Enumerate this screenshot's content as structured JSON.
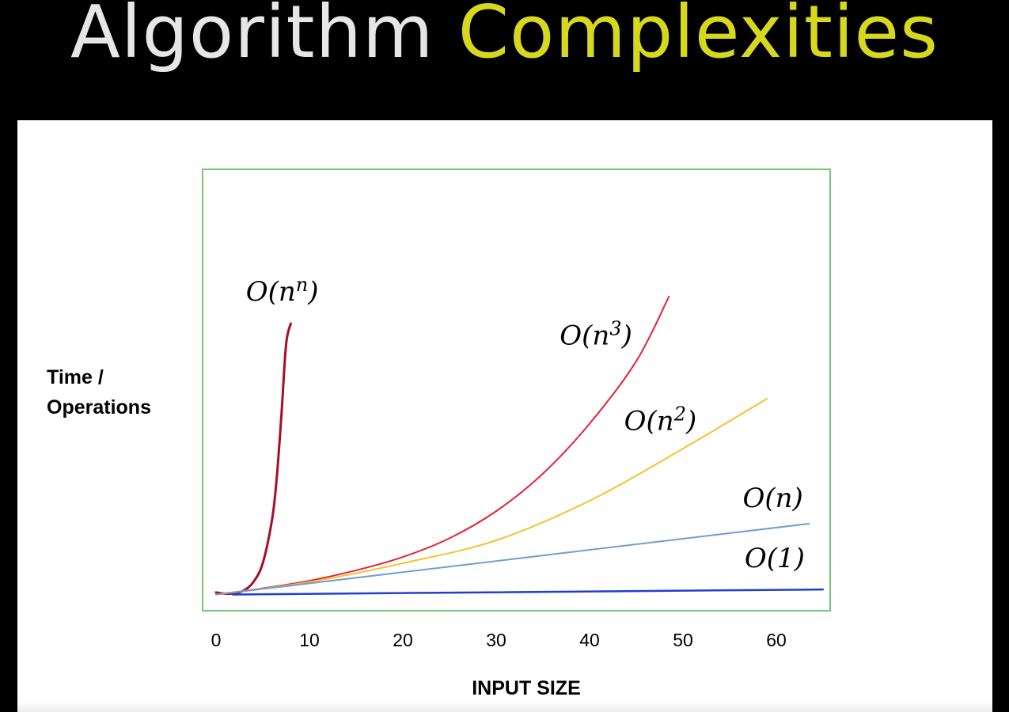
{
  "slide": {
    "title_part1": "Algorithm",
    "title_part2": "Complexities",
    "title_color_1": "#e6e6e6",
    "title_color_2": "#d7d81e",
    "background": "#000000"
  },
  "chart_data": {
    "type": "line",
    "title": "",
    "xlabel": "INPUT SIZE",
    "ylabel": "Time / Operations",
    "ylabel_lines": [
      "Time /",
      "Operations"
    ],
    "xlim": [
      0,
      65
    ],
    "ylim": [
      0,
      100
    ],
    "xticks": [
      0,
      10,
      20,
      30,
      40,
      50,
      60
    ],
    "yticks_shown": false,
    "grid": false,
    "frame_color": "#7cc576",
    "legend": "inline labels",
    "series": [
      {
        "name": "O(n^n)",
        "label_base": "O(n",
        "label_sup": "n",
        "label_close": ")",
        "color": "#a90d26",
        "label_at": [
          3.2,
          72.5
        ],
        "x": [
          0,
          1,
          2,
          3,
          4,
          5,
          6,
          6.5,
          7,
          7.5,
          8
        ],
        "y": [
          2.5,
          2.2,
          2.3,
          3.0,
          5.0,
          9.5,
          20,
          30,
          45,
          62,
          67
        ]
      },
      {
        "name": "O(n^3)",
        "label_base": "O(n",
        "label_sup": "3",
        "label_close": ")",
        "color": "#e2243a",
        "label_at": [
          36.8,
          62
        ],
        "x": [
          0,
          5,
          10,
          15,
          20,
          25,
          30,
          35,
          40,
          45,
          48.5
        ],
        "y": [
          2,
          3.5,
          5.3,
          7.8,
          11,
          15.5,
          22,
          31,
          43,
          58,
          73.5
        ]
      },
      {
        "name": "O(n^2)",
        "label_base": "O(n",
        "label_sup": "2",
        "label_close": ")",
        "color": "#f3c330",
        "label_at": [
          43.7,
          41.5
        ],
        "x": [
          0,
          10,
          20,
          30,
          40,
          50,
          59
        ],
        "y": [
          2,
          5,
          9.5,
          15,
          24.5,
          37,
          49
        ]
      },
      {
        "name": "O(n)",
        "label_base": "O(n)",
        "label_sup": "",
        "label_close": "",
        "color": "#6f9fcf",
        "label_at": [
          56.4,
          23
        ],
        "x": [
          0,
          63.5
        ],
        "y": [
          2,
          19
        ]
      },
      {
        "name": "O(1)",
        "label_base": "O(1)",
        "label_sup": "",
        "label_close": "",
        "color": "#1f3fd0",
        "label_at": [
          56.6,
          8.5
        ],
        "x": [
          1.8,
          65
        ],
        "y": [
          2.0,
          3.2
        ]
      }
    ]
  }
}
